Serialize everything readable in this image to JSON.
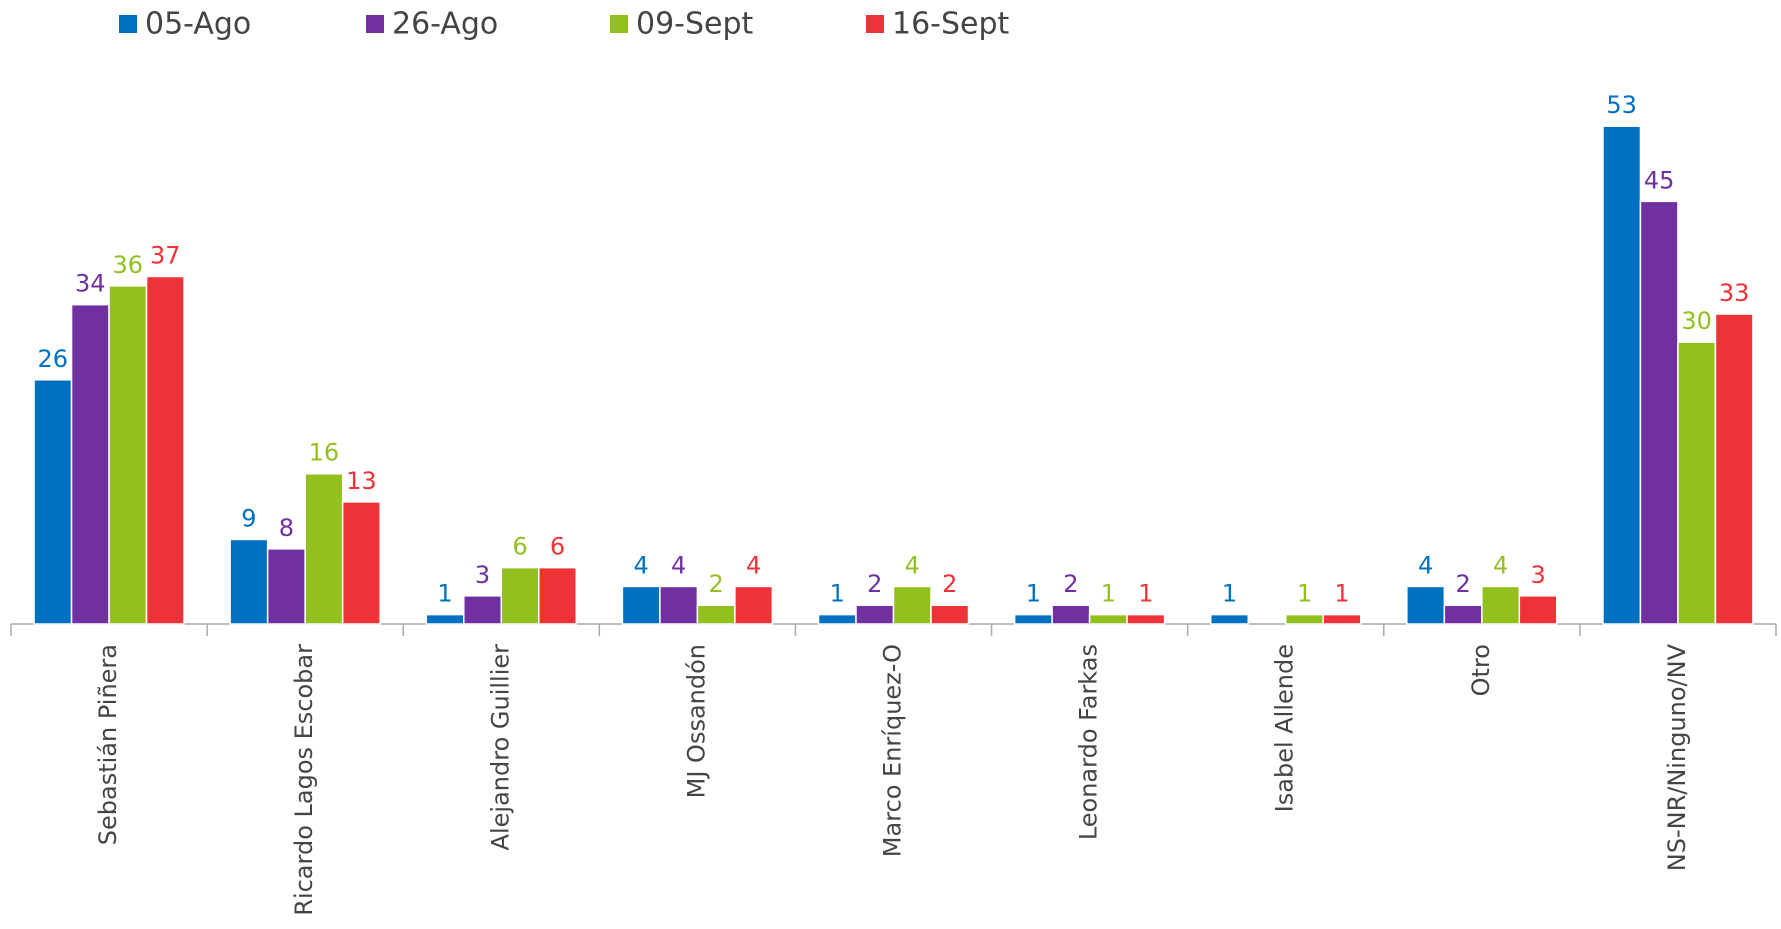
{
  "chart_data": {
    "type": "bar",
    "categories": [
      "Sebastián Piñera",
      "Ricardo Lagos Escobar",
      "Alejandro Guillier",
      "MJ Ossandón",
      "Marco Enríquez-O",
      "Leonardo Farkas",
      "Isabel Allende",
      "Otro",
      "NS-NR/Ninguno/NV"
    ],
    "series": [
      {
        "name": "05-Ago",
        "color": "#0070c0",
        "values": [
          26,
          9,
          1,
          4,
          1,
          1,
          1,
          4,
          53
        ]
      },
      {
        "name": "26-Ago",
        "color": "#7030a0",
        "values": [
          34,
          8,
          3,
          4,
          2,
          2,
          null,
          2,
          45
        ]
      },
      {
        "name": "09-Sept",
        "color": "#92c01f",
        "values": [
          36,
          16,
          6,
          2,
          4,
          1,
          1,
          4,
          30
        ]
      },
      {
        "name": "16-Sept",
        "color": "#ee3338",
        "values": [
          37,
          13,
          6,
          4,
          2,
          1,
          1,
          3,
          33
        ]
      }
    ]
  }
}
